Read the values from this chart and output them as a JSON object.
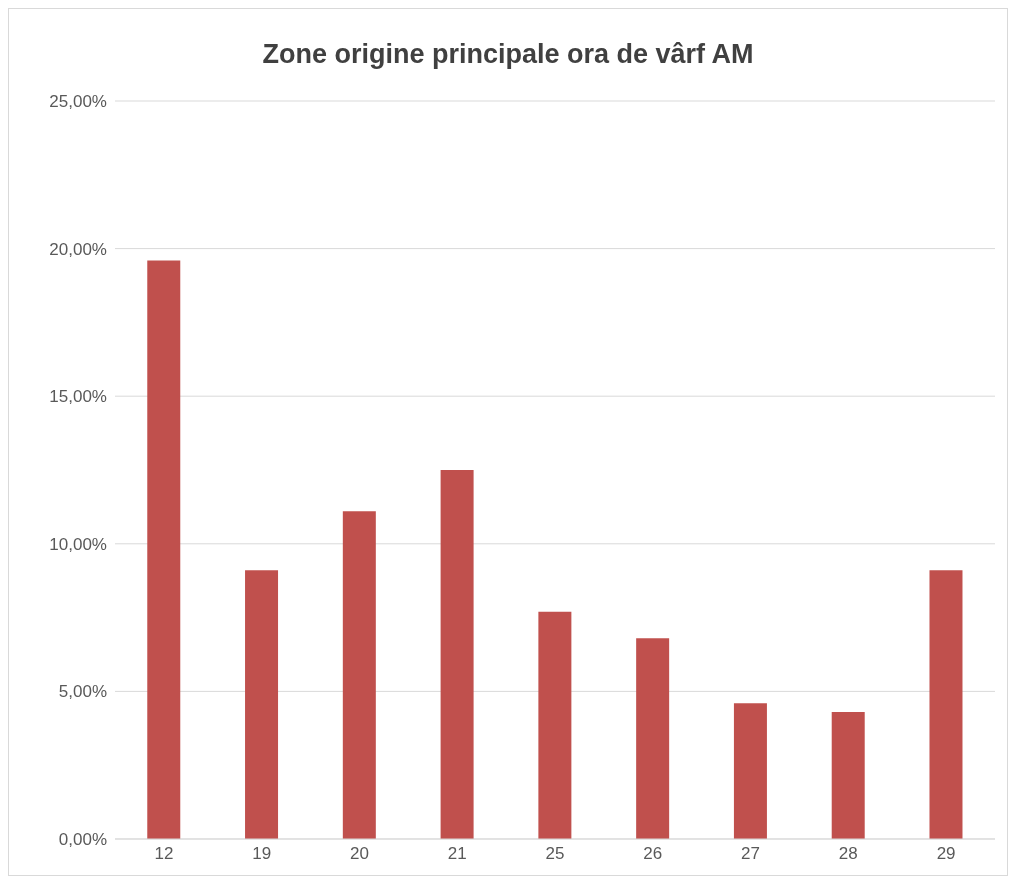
{
  "chart_data": {
    "type": "bar",
    "title": "Zone origine principale ora de vârf AM",
    "categories": [
      "12",
      "19",
      "20",
      "21",
      "25",
      "26",
      "27",
      "28",
      "29"
    ],
    "values": [
      19.6,
      9.1,
      11.1,
      12.5,
      7.7,
      6.8,
      4.6,
      4.3,
      9.1
    ],
    "color": "#c0504d",
    "ylim": [
      0,
      25
    ],
    "yticks": [
      {
        "value": 0,
        "label": "0,00%"
      },
      {
        "value": 5,
        "label": "5,00%"
      },
      {
        "value": 10,
        "label": "10,00%"
      },
      {
        "value": 15,
        "label": "15,00%"
      },
      {
        "value": 20,
        "label": "20,00%"
      },
      {
        "value": 25,
        "label": "25,00%"
      }
    ],
    "grid": "y"
  }
}
